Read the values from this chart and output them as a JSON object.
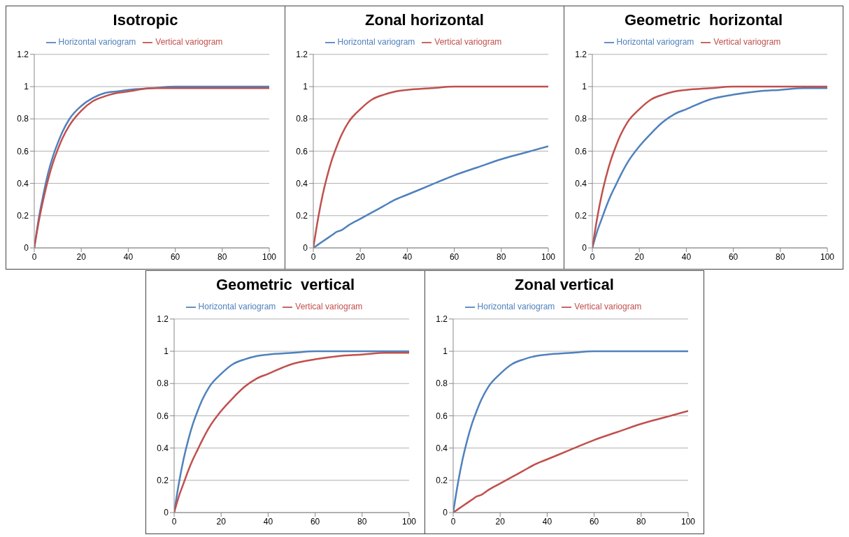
{
  "chart_data": [
    {
      "type": "line",
      "title": "Isotropic",
      "x": [
        0,
        2,
        4,
        6,
        8,
        10,
        12,
        15,
        20,
        25,
        30,
        35,
        40,
        50,
        60,
        70,
        80,
        90,
        100
      ],
      "xlim": [
        0,
        100
      ],
      "xticks": [
        0,
        20,
        40,
        60,
        80,
        100
      ],
      "ylim": [
        0,
        1.2
      ],
      "yticks": [
        0,
        0.2,
        0.4,
        0.6,
        0.8,
        1,
        1.2
      ],
      "grid": "y",
      "legend": "top",
      "series": [
        {
          "name": "Horizontal variogram",
          "color": "#4f81bd",
          "values": [
            0,
            0.19,
            0.34,
            0.47,
            0.57,
            0.65,
            0.72,
            0.8,
            0.88,
            0.93,
            0.96,
            0.97,
            0.98,
            0.99,
            1,
            1,
            1,
            1,
            1
          ]
        },
        {
          "name": "Vertical variogram",
          "color": "#c0504d",
          "values": [
            0,
            0.17,
            0.31,
            0.43,
            0.53,
            0.61,
            0.68,
            0.76,
            0.85,
            0.91,
            0.94,
            0.96,
            0.97,
            0.99,
            0.99,
            0.99,
            0.99,
            0.99,
            0.99
          ]
        }
      ]
    },
    {
      "type": "line",
      "title": "Zonal horizontal",
      "x": [
        0,
        2,
        4,
        6,
        8,
        10,
        12,
        15,
        20,
        25,
        30,
        35,
        40,
        50,
        60,
        70,
        80,
        90,
        100
      ],
      "xlim": [
        0,
        100
      ],
      "xticks": [
        0,
        20,
        40,
        60,
        80,
        100
      ],
      "ylim": [
        0,
        1.2
      ],
      "yticks": [
        0,
        0.2,
        0.4,
        0.6,
        0.8,
        1,
        1.2
      ],
      "grid": "y",
      "legend": "top",
      "series": [
        {
          "name": "Horizontal variogram",
          "color": "#4f81bd",
          "values": [
            0,
            0.02,
            0.04,
            0.06,
            0.08,
            0.1,
            0.11,
            0.14,
            0.18,
            0.22,
            0.26,
            0.3,
            0.33,
            0.39,
            0.45,
            0.5,
            0.55,
            0.59,
            0.63
          ]
        },
        {
          "name": "Vertical variogram",
          "color": "#c0504d",
          "values": [
            0,
            0.18,
            0.33,
            0.45,
            0.55,
            0.63,
            0.7,
            0.78,
            0.86,
            0.92,
            0.95,
            0.97,
            0.98,
            0.99,
            1,
            1,
            1,
            1,
            1
          ]
        }
      ]
    },
    {
      "type": "line",
      "title": "Geometric  horizontal",
      "x": [
        0,
        2,
        4,
        6,
        8,
        10,
        12,
        15,
        20,
        25,
        30,
        35,
        40,
        50,
        60,
        70,
        80,
        90,
        100
      ],
      "xlim": [
        0,
        100
      ],
      "xticks": [
        0,
        20,
        40,
        60,
        80,
        100
      ],
      "ylim": [
        0,
        1.2
      ],
      "yticks": [
        0,
        0.2,
        0.4,
        0.6,
        0.8,
        1,
        1.2
      ],
      "grid": "y",
      "legend": "top",
      "series": [
        {
          "name": "Horizontal variogram",
          "color": "#4f81bd",
          "values": [
            0,
            0.1,
            0.18,
            0.26,
            0.33,
            0.39,
            0.45,
            0.53,
            0.63,
            0.71,
            0.78,
            0.83,
            0.86,
            0.92,
            0.95,
            0.97,
            0.98,
            0.99,
            0.99
          ]
        },
        {
          "name": "Vertical variogram",
          "color": "#c0504d",
          "values": [
            0,
            0.18,
            0.33,
            0.45,
            0.55,
            0.63,
            0.7,
            0.78,
            0.86,
            0.92,
            0.95,
            0.97,
            0.98,
            0.99,
            1,
            1,
            1,
            1,
            1
          ]
        }
      ]
    },
    {
      "type": "line",
      "title": "Geometric  vertical",
      "x": [
        0,
        2,
        4,
        6,
        8,
        10,
        12,
        15,
        20,
        25,
        30,
        35,
        40,
        50,
        60,
        70,
        80,
        90,
        100
      ],
      "xlim": [
        0,
        100
      ],
      "xticks": [
        0,
        20,
        40,
        60,
        80,
        100
      ],
      "ylim": [
        0,
        1.2
      ],
      "yticks": [
        0,
        0.2,
        0.4,
        0.6,
        0.8,
        1,
        1.2
      ],
      "grid": "y",
      "legend": "top",
      "series": [
        {
          "name": "Horizontal variogram",
          "color": "#4f81bd",
          "values": [
            0,
            0.18,
            0.33,
            0.45,
            0.55,
            0.63,
            0.7,
            0.78,
            0.86,
            0.92,
            0.95,
            0.97,
            0.98,
            0.99,
            1,
            1,
            1,
            1,
            1
          ]
        },
        {
          "name": "Vertical variogram",
          "color": "#c0504d",
          "values": [
            0,
            0.1,
            0.18,
            0.26,
            0.33,
            0.39,
            0.45,
            0.53,
            0.63,
            0.71,
            0.78,
            0.83,
            0.86,
            0.92,
            0.95,
            0.97,
            0.98,
            0.99,
            0.99
          ]
        }
      ]
    },
    {
      "type": "line",
      "title": "Zonal vertical",
      "x": [
        0,
        2,
        4,
        6,
        8,
        10,
        12,
        15,
        20,
        25,
        30,
        35,
        40,
        50,
        60,
        70,
        80,
        90,
        100
      ],
      "xlim": [
        0,
        100
      ],
      "xticks": [
        0,
        20,
        40,
        60,
        80,
        100
      ],
      "ylim": [
        0,
        1.2
      ],
      "yticks": [
        0,
        0.2,
        0.4,
        0.6,
        0.8,
        1,
        1.2
      ],
      "grid": "y",
      "legend": "top",
      "series": [
        {
          "name": "Horizontal variogram",
          "color": "#4f81bd",
          "values": [
            0,
            0.18,
            0.33,
            0.45,
            0.55,
            0.63,
            0.7,
            0.78,
            0.86,
            0.92,
            0.95,
            0.97,
            0.98,
            0.99,
            1,
            1,
            1,
            1,
            1
          ]
        },
        {
          "name": "Vertical variogram",
          "color": "#c0504d",
          "values": [
            0,
            0.02,
            0.04,
            0.06,
            0.08,
            0.1,
            0.11,
            0.14,
            0.18,
            0.22,
            0.26,
            0.3,
            0.33,
            0.39,
            0.45,
            0.5,
            0.55,
            0.59,
            0.63
          ]
        }
      ]
    }
  ]
}
